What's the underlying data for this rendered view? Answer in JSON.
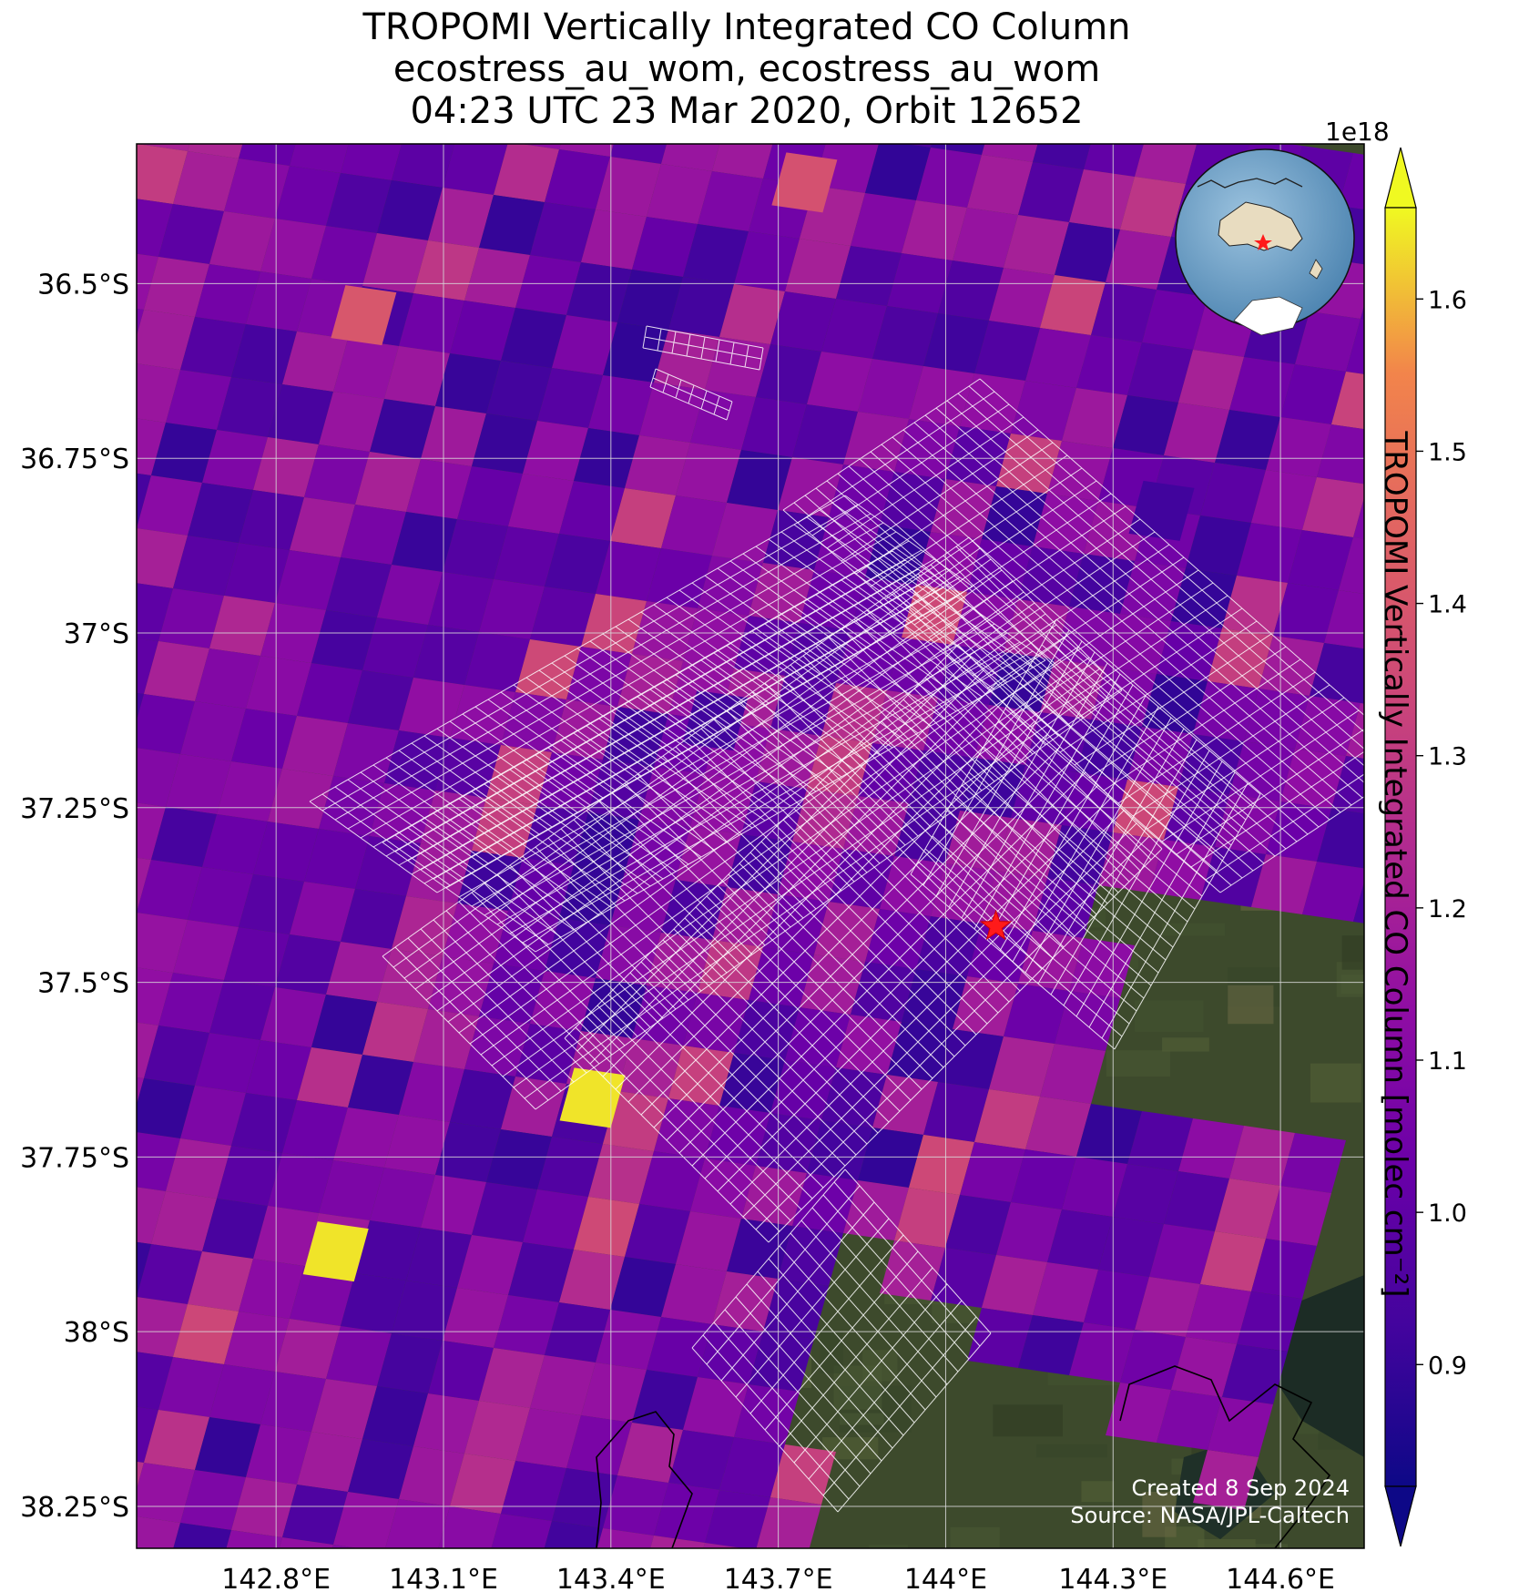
{
  "title": {
    "line1": "TROPOMI Vertically Integrated CO Column",
    "line2": "ecostress_au_wom, ecostress_au_wom",
    "line3": "04:23 UTC 23 Mar 2020, Orbit 12652"
  },
  "map": {
    "projection": "PlateCarree",
    "extent_lon": [
      142.55,
      144.75
    ],
    "extent_lat": [
      -38.31,
      -36.3
    ],
    "x_ticks": [
      {
        "value": 142.8,
        "label": "142.8°E"
      },
      {
        "value": 143.1,
        "label": "143.1°E"
      },
      {
        "value": 143.4,
        "label": "143.4°E"
      },
      {
        "value": 143.7,
        "label": "143.7°E"
      },
      {
        "value": 144.0,
        "label": "144°E"
      },
      {
        "value": 144.3,
        "label": "144.3°E"
      },
      {
        "value": 144.6,
        "label": "144.6°E"
      }
    ],
    "y_ticks": [
      {
        "value": -36.5,
        "label": "36.5°S"
      },
      {
        "value": -36.75,
        "label": "36.75°S"
      },
      {
        "value": -37.0,
        "label": "37°S"
      },
      {
        "value": -37.25,
        "label": "37.25°S"
      },
      {
        "value": -37.5,
        "label": "37.5°S"
      },
      {
        "value": -37.75,
        "label": "37.75°S"
      },
      {
        "value": -38.0,
        "label": "38°S"
      },
      {
        "value": -38.25,
        "label": "38.25°S"
      }
    ],
    "gridlines": true,
    "basemap": "satellite imagery",
    "colors": {
      "gridline": "#d9d9d9",
      "grid_hatch": "#ffffff",
      "marker": "#ff0000",
      "coastline": "#000000"
    },
    "marker": {
      "symbol": "star",
      "lon": 144.09,
      "lat": -37.42
    },
    "credit_line1": "Created 8 Sep 2024",
    "credit_line2": "Source: NASA/JPL-Caltech",
    "inset_globe": {
      "center_region": "Australia",
      "marker": "star",
      "marker_lon": 144.09,
      "marker_lat": -37.42
    }
  },
  "colorbar": {
    "colormap": "plasma",
    "label": "TROPOMI Vertically Integrated CO Column [molec cm⁻²]",
    "exponent_label": "1e18",
    "range": [
      0.82,
      1.66
    ],
    "extend": "both",
    "ticks": [
      {
        "value": 0.9,
        "label": "0.9"
      },
      {
        "value": 1.0,
        "label": "1.0"
      },
      {
        "value": 1.1,
        "label": "1.1"
      },
      {
        "value": 1.2,
        "label": "1.2"
      },
      {
        "value": 1.3,
        "label": "1.3"
      },
      {
        "value": 1.4,
        "label": "1.4"
      },
      {
        "value": 1.5,
        "label": "1.5"
      },
      {
        "value": 1.6,
        "label": "1.6"
      }
    ]
  },
  "chart_data": {
    "type": "heatmap",
    "title": "TROPOMI Vertically Integrated CO Column",
    "variable": "CO column (molec cm⁻²)",
    "scale": "1e18",
    "value_range": [
      0.85,
      1.66
    ],
    "notable_cells": [
      {
        "lon": 142.92,
        "lat": -37.88,
        "value": 1.64
      },
      {
        "lon": 143.38,
        "lat": -37.66,
        "value": 1.64
      },
      {
        "lon": 142.97,
        "lat": -36.54,
        "value": 1.4
      },
      {
        "lon": 143.76,
        "lat": -36.35,
        "value": 1.38
      },
      {
        "lon": 143.6,
        "lat": -37.12,
        "value": 0.92
      },
      {
        "lon": 144.4,
        "lat": -36.82,
        "value": 0.92
      }
    ]
  }
}
